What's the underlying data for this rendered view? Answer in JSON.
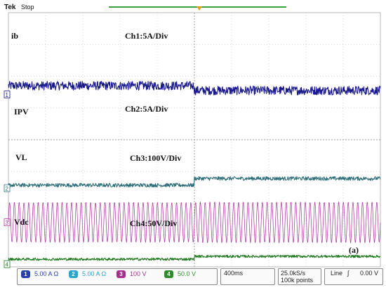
{
  "header": {
    "brand": "Tek",
    "state": "Stop"
  },
  "panel_label": "(a)",
  "chart_data": {
    "type": "line",
    "title": "",
    "x": {
      "divisions": 10,
      "time_per_div": "400ms",
      "step_at_division": 5
    },
    "y": {
      "divisions": 8,
      "grid": true
    },
    "series": [
      {
        "name": "ib",
        "scale_label": "Ch1:5A/Div",
        "color": "#1a1a8c",
        "ground_marker": "1",
        "level_before": 5.7,
        "level_after": 5.55,
        "noise": 0.14,
        "waveform": "noisy-dc"
      },
      {
        "name": "IPV",
        "scale_label": "Ch2:5A/Div",
        "color": "#2f6f7a",
        "ground_marker": "2",
        "level_before": 2.57,
        "level_after": 2.78,
        "noise": 0.06,
        "waveform": "noisy-dc"
      },
      {
        "name": "VL",
        "scale_label": "Ch3:100V/Div",
        "color": "#b03a9e",
        "ground_marker": "3",
        "center": 1.4,
        "amplitude": 0.62,
        "cycles": 78,
        "waveform": "sine"
      },
      {
        "name": "Vdc",
        "scale_label": "Ch4:50V/Div",
        "color": "#1f7a1f",
        "ground_marker": "4",
        "level_before": 0.24,
        "level_after": 0.33,
        "noise": 0.04,
        "waveform": "noisy-dc"
      }
    ]
  },
  "status_bar": {
    "channels": [
      {
        "id": "1",
        "scale": "5.00 A",
        "suffix": "Ω",
        "color": "#2b3fa8"
      },
      {
        "id": "2",
        "scale": "5.00 A",
        "suffix": "Ω",
        "color": "#2aa6c9"
      },
      {
        "id": "3",
        "scale": "100 V",
        "suffix": "",
        "color": "#a3308f"
      },
      {
        "id": "4",
        "scale": "50.0 V",
        "suffix": "",
        "color": "#2e8b2e"
      }
    ],
    "timebase": "400ms",
    "sample_rate": "25.0kS/s",
    "record_length": "100k points",
    "trigger_type": "Line",
    "trigger_slope": "∫",
    "trigger_level": "0.00 V"
  }
}
